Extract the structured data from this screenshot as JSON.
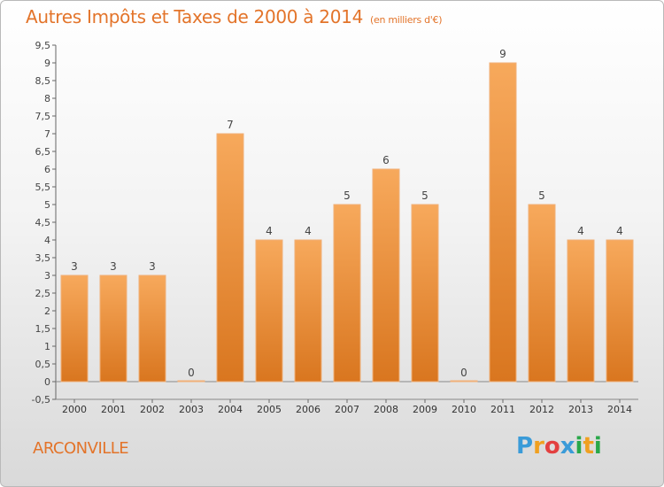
{
  "header": {
    "title": "Autres Impôts et Taxes de 2000 à 2014",
    "unit": "(en milliers d'€)"
  },
  "footer": {
    "commune": "ARCONVILLE",
    "logo_letters": [
      "P",
      "r",
      "o",
      "x",
      "i",
      "t",
      "i"
    ],
    "logo_colors": [
      "#3a9bd8",
      "#f0a020",
      "#e34040",
      "#3a9bd8",
      "#2aa84a",
      "#f0a020",
      "#2aa84a"
    ]
  },
  "colors": {
    "title": "#e3742a",
    "bar_top": "#f7a95c",
    "bar_bottom": "#d9761f",
    "axis": "#555555",
    "grid": "#cccccc"
  },
  "chart_data": {
    "type": "bar",
    "categories": [
      "2000",
      "2001",
      "2002",
      "2003",
      "2004",
      "2005",
      "2006",
      "2007",
      "2008",
      "2009",
      "2010",
      "2011",
      "2012",
      "2013",
      "2014"
    ],
    "values": [
      3,
      3,
      3,
      0,
      7,
      4,
      4,
      5,
      6,
      5,
      0,
      9,
      5,
      4,
      4
    ],
    "title": "Autres Impôts et Taxes de 2000 à 2014",
    "xlabel": "",
    "ylabel": "",
    "ylim": [
      -0.5,
      9.5
    ],
    "yticks": [
      "-0,5",
      "0",
      "0,5",
      "1",
      "1,5",
      "2",
      "2,5",
      "3",
      "3,5",
      "4",
      "4,5",
      "5",
      "5,5",
      "6",
      "6,5",
      "7",
      "7,5",
      "8",
      "8,5",
      "9",
      "9,5"
    ],
    "grid": false,
    "legend": "none"
  }
}
